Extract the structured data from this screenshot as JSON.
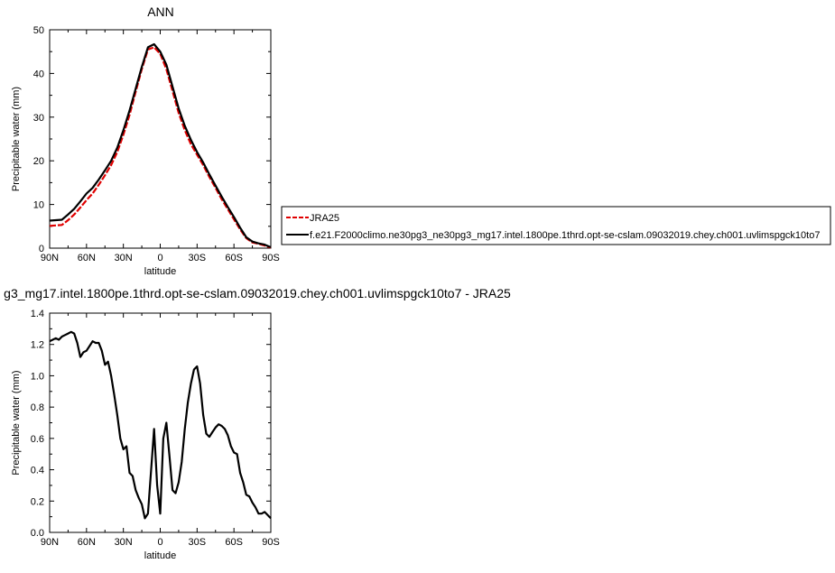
{
  "chart_data": [
    {
      "type": "line",
      "title": "ANN",
      "xlabel": "latitude",
      "ylabel": "Precipitable water (mm)",
      "xlim": [
        90,
        -90
      ],
      "ylim": [
        0,
        50
      ],
      "xticks": [
        90,
        60,
        30,
        0,
        -30,
        -60,
        -90
      ],
      "xtick_labels": [
        "90N",
        "60N",
        "30N",
        "0",
        "30S",
        "60S",
        "90S"
      ],
      "yticks": [
        0,
        10,
        20,
        30,
        40,
        50
      ],
      "ytick_labels": [
        "0",
        "10",
        "20",
        "30",
        "40",
        "50"
      ],
      "legend_position": "right",
      "grid": false,
      "x": [
        90,
        85,
        80,
        75,
        70,
        65,
        60,
        55,
        50,
        45,
        40,
        35,
        30,
        25,
        20,
        15,
        10,
        5,
        0,
        -5,
        -10,
        -15,
        -20,
        -25,
        -30,
        -35,
        -40,
        -45,
        -50,
        -55,
        -60,
        -65,
        -70,
        -75,
        -80,
        -85,
        -90
      ],
      "series": [
        {
          "name": "JRA25",
          "color": "#e00000",
          "dash": true,
          "values": [
            5.1,
            5.2,
            5.3,
            6.4,
            7.7,
            9.3,
            11.0,
            12.5,
            14.5,
            16.7,
            19.0,
            22.0,
            26.0,
            30.5,
            35.8,
            41.0,
            45.5,
            46.0,
            44.5,
            41.0,
            36.0,
            31.0,
            27.0,
            23.8,
            21.4,
            19.0,
            16.3,
            13.8,
            11.2,
            8.9,
            6.6,
            4.3,
            2.3,
            1.3,
            1.0,
            0.6,
            0.1
          ]
        },
        {
          "name": "f.e21.F2000climo.ne30pg3_ne30pg3_mg17.intel.1800pe.1thrd.opt-se-cslam.09032019.chey.ch001.uvlimspgck10to7",
          "color": "#000000",
          "dash": false,
          "values": [
            6.3,
            6.4,
            6.5,
            7.7,
            9.0,
            10.7,
            12.5,
            13.8,
            15.7,
            17.8,
            20.0,
            23.0,
            27.0,
            31.5,
            36.5,
            41.5,
            46.0,
            46.7,
            45.0,
            42.0,
            37.0,
            32.0,
            28.0,
            24.8,
            22.0,
            19.6,
            16.9,
            14.3,
            11.8,
            9.4,
            7.1,
            4.7,
            2.5,
            1.5,
            1.1,
            0.8,
            0.2
          ]
        }
      ]
    },
    {
      "type": "line",
      "title": "g3_mg17.intel.1800pe.1thrd.opt-se-cslam.09032019.chey.ch001.uvlimspgck10to7 - JRA25",
      "xlabel": "latitude",
      "ylabel": "Precipitable water (mm)",
      "xlim": [
        90,
        -90
      ],
      "ylim": [
        0.0,
        1.4
      ],
      "xticks": [
        90,
        60,
        30,
        0,
        -30,
        -60,
        -90
      ],
      "xtick_labels": [
        "90N",
        "60N",
        "30N",
        "0",
        "30S",
        "60S",
        "90S"
      ],
      "yticks": [
        0.0,
        0.2,
        0.4,
        0.6,
        0.8,
        1.0,
        1.2,
        1.4
      ],
      "ytick_labels": [
        "0.0",
        "0.2",
        "0.4",
        "0.6",
        "0.8",
        "1.0",
        "1.2",
        "1.4"
      ],
      "grid": false,
      "x": [
        90,
        87.5,
        85,
        82.5,
        80,
        77.5,
        75,
        72.5,
        70,
        67.5,
        65,
        62.5,
        60,
        57.5,
        55,
        52.5,
        50,
        47.5,
        45,
        42.5,
        40,
        37.5,
        35,
        32.5,
        30,
        27.5,
        25,
        22.5,
        20,
        17.5,
        15,
        12.5,
        10,
        7.5,
        5,
        2.5,
        0,
        -2.5,
        -5,
        -7.5,
        -10,
        -12.5,
        -15,
        -17.5,
        -20,
        -22.5,
        -25,
        -27.5,
        -30,
        -32.5,
        -35,
        -37.5,
        -40,
        -42.5,
        -45,
        -47.5,
        -50,
        -52.5,
        -55,
        -57.5,
        -60,
        -62.5,
        -65,
        -67.5,
        -70,
        -72.5,
        -75,
        -77.5,
        -80,
        -82.5,
        -85,
        -87.5,
        -90
      ],
      "series": [
        {
          "name": "",
          "color": "#000000",
          "dash": false,
          "values": [
            1.22,
            1.23,
            1.24,
            1.23,
            1.25,
            1.26,
            1.27,
            1.28,
            1.27,
            1.21,
            1.12,
            1.15,
            1.16,
            1.19,
            1.22,
            1.21,
            1.21,
            1.16,
            1.07,
            1.09,
            1.0,
            0.88,
            0.75,
            0.6,
            0.53,
            0.55,
            0.38,
            0.36,
            0.27,
            0.22,
            0.18,
            0.09,
            0.12,
            0.39,
            0.66,
            0.3,
            0.12,
            0.6,
            0.7,
            0.49,
            0.27,
            0.25,
            0.32,
            0.45,
            0.66,
            0.83,
            0.95,
            1.04,
            1.06,
            0.95,
            0.75,
            0.63,
            0.61,
            0.64,
            0.67,
            0.69,
            0.68,
            0.66,
            0.62,
            0.55,
            0.51,
            0.5,
            0.38,
            0.32,
            0.24,
            0.23,
            0.19,
            0.16,
            0.12,
            0.12,
            0.13,
            0.11,
            0.09
          ]
        }
      ]
    }
  ]
}
